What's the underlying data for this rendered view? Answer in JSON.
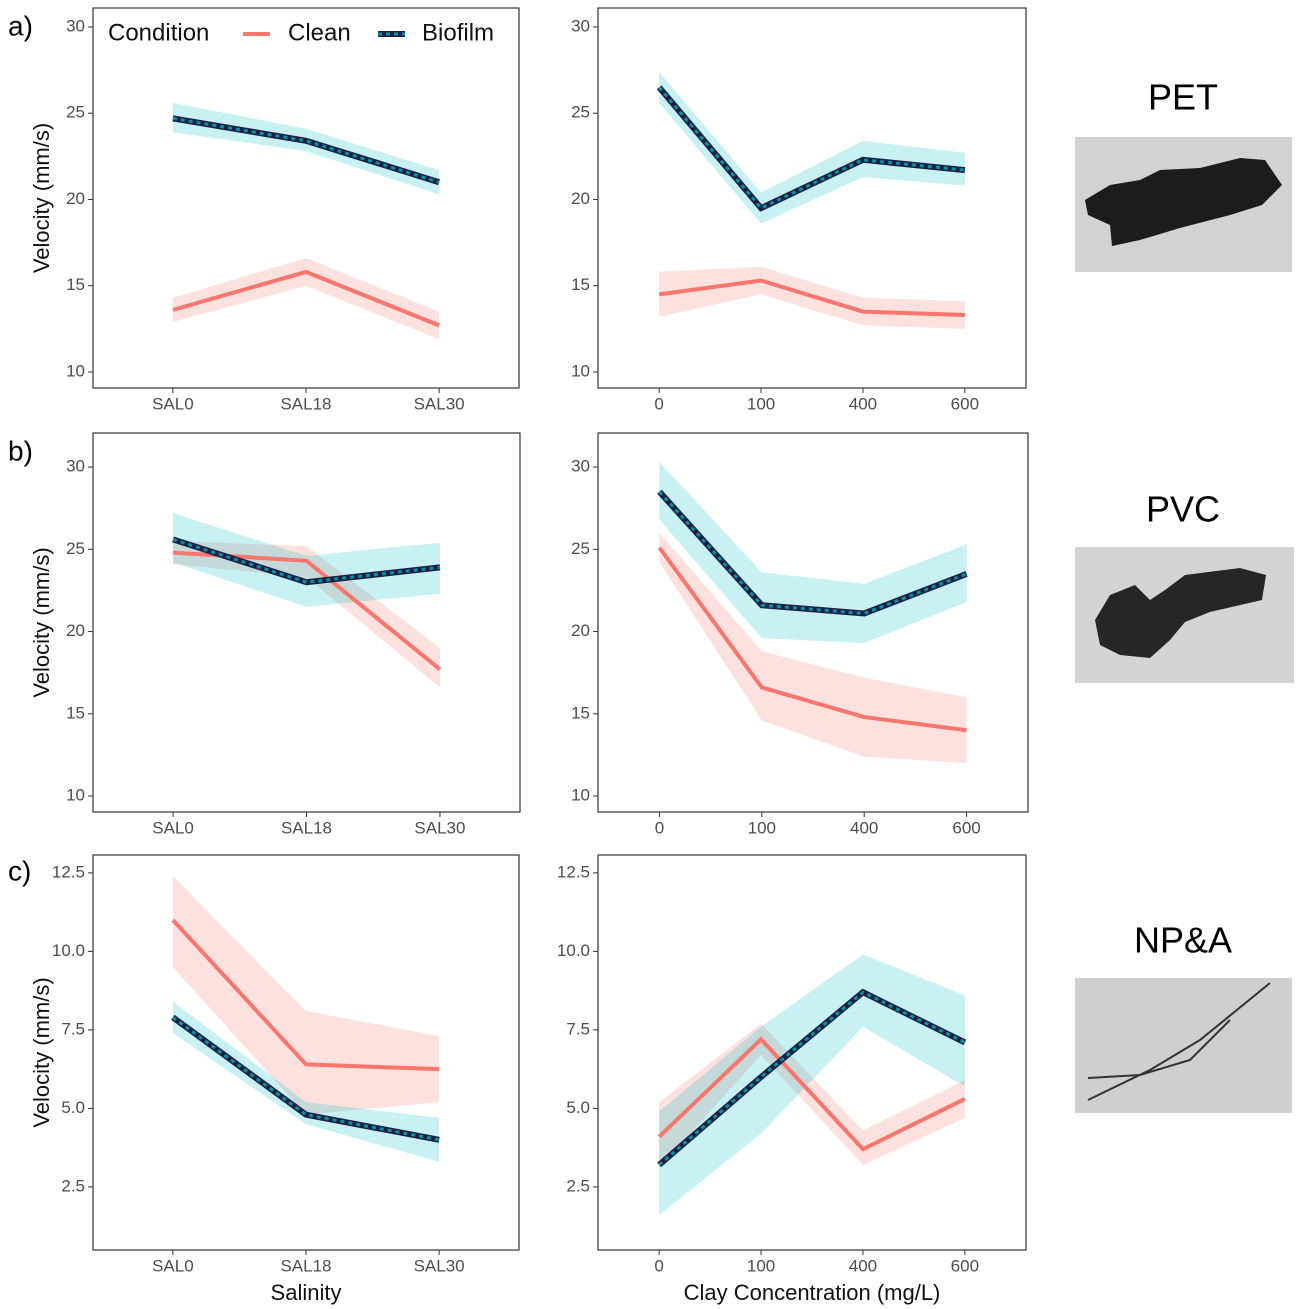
{
  "panels": [
    "a)",
    "b)",
    "c)"
  ],
  "materials": [
    "PET",
    "PVC",
    "NP&A"
  ],
  "chart_data": [
    {
      "type": "line",
      "y_label": "Velocity (mm/s)",
      "legend_title": "Condition",
      "categories": [
        "SAL0",
        "SAL18",
        "SAL30"
      ],
      "ylim": [
        9.07,
        31.1
      ],
      "yticks": [
        10,
        15,
        20,
        25,
        30
      ],
      "series": [
        {
          "name": "Clean",
          "color": "#f8766d",
          "values": [
            13.6,
            15.8,
            12.7
          ],
          "lower": [
            12.9,
            15.0,
            11.9
          ],
          "upper": [
            14.3,
            16.6,
            13.5
          ]
        },
        {
          "name": "Biofilm",
          "color": "#00bfc4",
          "values": [
            24.7,
            23.4,
            21.0
          ],
          "lower": [
            23.9,
            22.8,
            20.3
          ],
          "upper": [
            25.6,
            24.1,
            21.7
          ]
        }
      ]
    },
    {
      "type": "line",
      "categories": [
        "0",
        "100",
        "400",
        "600"
      ],
      "ylim": [
        9.07,
        31.1
      ],
      "yticks": [
        10,
        15,
        20,
        25,
        30
      ],
      "series": [
        {
          "color": "#f8766d",
          "values": [
            14.5,
            15.3,
            13.5,
            13.3
          ],
          "lower": [
            13.2,
            14.5,
            12.7,
            12.5
          ],
          "upper": [
            15.8,
            16.1,
            14.3,
            14.1
          ]
        },
        {
          "color": "#00bfc4",
          "values": [
            26.5,
            19.5,
            22.3,
            21.7
          ],
          "lower": [
            25.6,
            18.6,
            21.3,
            20.8
          ],
          "upper": [
            27.4,
            20.4,
            23.4,
            22.7
          ]
        }
      ]
    },
    {
      "type": "line",
      "y_label": "Velocity (mm/s)",
      "categories": [
        "SAL0",
        "SAL18",
        "SAL30"
      ],
      "ylim": [
        9.03,
        32.07
      ],
      "yticks": [
        10,
        15,
        20,
        25,
        30
      ],
      "series": [
        {
          "color": "#f8766d",
          "values": [
            24.8,
            24.3,
            17.7
          ],
          "lower": [
            24.1,
            23.3,
            16.6
          ],
          "upper": [
            25.5,
            25.2,
            19.0
          ]
        },
        {
          "color": "#00bfc4",
          "values": [
            25.6,
            23.0,
            23.9
          ],
          "lower": [
            24.2,
            21.5,
            22.3
          ],
          "upper": [
            27.2,
            24.6,
            25.4
          ]
        }
      ]
    },
    {
      "type": "line",
      "categories": [
        "0",
        "100",
        "400",
        "600"
      ],
      "ylim": [
        9.03,
        32.07
      ],
      "yticks": [
        10,
        15,
        20,
        25,
        30
      ],
      "series": [
        {
          "color": "#f8766d",
          "values": [
            25.1,
            16.6,
            14.8,
            14.0
          ],
          "lower": [
            24.2,
            14.6,
            12.4,
            12.0
          ],
          "upper": [
            26.0,
            18.8,
            17.2,
            16.0
          ]
        },
        {
          "color": "#00bfc4",
          "values": [
            28.5,
            21.6,
            21.1,
            23.5
          ],
          "lower": [
            26.8,
            19.6,
            19.3,
            21.8
          ],
          "upper": [
            30.3,
            23.6,
            22.9,
            25.3
          ]
        }
      ]
    },
    {
      "type": "line",
      "y_label": "Velocity (mm/s)",
      "x_label": "Salinity",
      "categories": [
        "SAL0",
        "SAL18",
        "SAL30"
      ],
      "ylim": [
        0.49,
        13.07
      ],
      "yticks": [
        2.5,
        {
          "value": 5,
          "label": "5.0"
        },
        7.5,
        {
          "value": 10,
          "label": "10.0"
        },
        12.5
      ],
      "series": [
        {
          "color": "#f8766d",
          "values": [
            11.0,
            6.4,
            6.25
          ],
          "lower": [
            9.5,
            4.8,
            5.2
          ],
          "upper": [
            12.4,
            8.1,
            7.3
          ]
        },
        {
          "color": "#00bfc4",
          "values": [
            7.9,
            4.8,
            4.0
          ],
          "lower": [
            7.4,
            4.5,
            3.3
          ],
          "upper": [
            8.4,
            5.2,
            4.7
          ]
        }
      ]
    },
    {
      "type": "line",
      "x_label": "Clay Concentration (mg/L)",
      "categories": [
        "0",
        "100",
        "400",
        "600"
      ],
      "ylim": [
        0.49,
        13.07
      ],
      "yticks": [
        2.5,
        {
          "value": 5,
          "label": "5.0"
        },
        7.5,
        {
          "value": 10,
          "label": "10.0"
        },
        12.5
      ],
      "series": [
        {
          "color": "#f8766d",
          "values": [
            4.1,
            7.2,
            3.7,
            5.3
          ],
          "lower": [
            3.1,
            6.7,
            3.2,
            4.7
          ],
          "upper": [
            5.2,
            7.7,
            4.3,
            5.9
          ]
        },
        {
          "color": "#00bfc4",
          "values": [
            3.2,
            6.0,
            8.7,
            7.1
          ],
          "lower": [
            1.6,
            4.2,
            7.6,
            5.7
          ],
          "upper": [
            4.9,
            7.6,
            9.9,
            8.6
          ]
        }
      ]
    }
  ]
}
